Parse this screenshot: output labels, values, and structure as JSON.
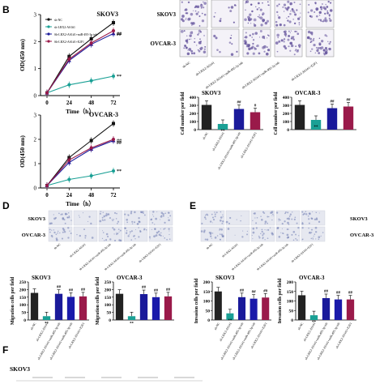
{
  "panels": {
    "B": "B",
    "D": "D",
    "E": "E",
    "F": "F"
  },
  "group_labels": [
    "sh-NC",
    "sh-LRX2-AS1#1",
    "sh-LRX2-AS1#1+miR-495-3p inh",
    "sh-LRX2-AS1#1+E2F1"
  ],
  "colony_row_labels": [
    "SKOV3",
    "OVCAR-3"
  ],
  "transwell_row_labels": [
    "SKOV3",
    "OVCAR-3"
  ],
  "f_row_label": "SKOV3",
  "colors": {
    "sh_NC": "#111111",
    "sh_AS1": "#1aa095",
    "miR_inh": "#1a1a9a",
    "E2F1": "#9a1a4a",
    "colony": "#6a5aa0",
    "transwell": "#b8c0d8"
  },
  "chart_data": [
    {
      "type": "line",
      "title": "SKOV3",
      "xlabel": "Time（h）",
      "ylabel": "OD(450 nm)",
      "x": [
        0,
        24,
        48,
        72
      ],
      "ylim": [
        0,
        3
      ],
      "yticks": [
        "0",
        "1",
        "2",
        "3"
      ],
      "xticks": [
        "0",
        "24",
        "48",
        "72"
      ],
      "legend": "top-left",
      "annotations": [
        "##",
        "##",
        "**"
      ],
      "series": [
        {
          "name": "sh-NC",
          "values": [
            0.1,
            1.45,
            2.1,
            2.7
          ]
        },
        {
          "name": "sh-LRX2-AS1#1",
          "values": [
            0.1,
            0.4,
            0.55,
            0.72
          ]
        },
        {
          "name": "Sh-LRX2-AS1#1+miR-495-3p inh",
          "values": [
            0.1,
            1.3,
            1.9,
            2.3
          ]
        },
        {
          "name": "Sh-LRX2-AS1#1+E2F1",
          "values": [
            0.1,
            1.35,
            1.95,
            2.4
          ]
        }
      ]
    },
    {
      "type": "line",
      "title": "OVCAR-3",
      "xlabel": "Time（h）",
      "ylabel": "OD(450 nm)",
      "x": [
        0,
        24,
        48,
        72
      ],
      "ylim": [
        0,
        3
      ],
      "yticks": [
        "0",
        "1",
        "2",
        "3"
      ],
      "xticks": [
        "0",
        "24",
        "48",
        "72"
      ],
      "annotations": [
        "##",
        "##",
        "**"
      ],
      "series": [
        {
          "name": "sh-NC",
          "values": [
            0.1,
            1.25,
            1.95,
            2.65
          ]
        },
        {
          "name": "sh-LRX2-AS1#1",
          "values": [
            0.1,
            0.35,
            0.5,
            0.7
          ]
        },
        {
          "name": "Sh-LRX2-AS1#1+miR-495-3p inh",
          "values": [
            0.1,
            1.05,
            1.6,
            1.95
          ]
        },
        {
          "name": "Sh-LRX2-AS1#1+E2F1",
          "values": [
            0.1,
            1.15,
            1.65,
            2.0
          ]
        }
      ]
    },
    {
      "type": "bar",
      "title": "SKOV3",
      "ylabel": "Cell number per field",
      "ylim": [
        0,
        400
      ],
      "yticks": [
        "0",
        "100",
        "200",
        "300",
        "400"
      ],
      "values": [
        305,
        70,
        255,
        215
      ],
      "annotations": [
        "",
        "**",
        "##",
        "#"
      ]
    },
    {
      "type": "bar",
      "title": "OVCAR-3",
      "ylabel": "Cell number per field",
      "ylim": [
        0,
        400
      ],
      "yticks": [
        "0",
        "100",
        "200",
        "300",
        "400"
      ],
      "values": [
        305,
        120,
        265,
        285
      ],
      "annotations": [
        "",
        "**",
        "##",
        "##"
      ]
    },
    {
      "type": "bar",
      "title": "SKOV3",
      "ylabel": "Migration cells per field",
      "ylim": [
        0,
        250
      ],
      "yticks": [
        "0",
        "50",
        "100",
        "150",
        "200",
        "250"
      ],
      "values": [
        178,
        25,
        172,
        152,
        155
      ],
      "annotations": [
        "",
        "**",
        "##",
        "##",
        "##"
      ]
    },
    {
      "type": "bar",
      "title": "OVCAR-3",
      "ylabel": "Migration cells per field",
      "ylim": [
        0,
        250
      ],
      "yticks": [
        "0",
        "50",
        "100",
        "150",
        "200",
        "250"
      ],
      "values": [
        172,
        25,
        170,
        150,
        155
      ],
      "annotations": [
        "",
        "**",
        "##",
        "##",
        "##"
      ]
    },
    {
      "type": "bar",
      "title": "SKOV3",
      "ylabel": "Invasion cells per field",
      "ylim": [
        0,
        200
      ],
      "yticks": [
        "0",
        "50",
        "100",
        "150",
        "200"
      ],
      "values": [
        150,
        35,
        120,
        112,
        118
      ],
      "annotations": [
        "",
        "**",
        "##",
        "##",
        "##"
      ]
    },
    {
      "type": "bar",
      "title": "OVCAR-3",
      "ylabel": "Invasion cells per field",
      "ylim": [
        0,
        200
      ],
      "yticks": [
        "0",
        "50",
        "100",
        "150",
        "200"
      ],
      "values": [
        130,
        25,
        115,
        108,
        108
      ],
      "annotations": [
        "",
        "**",
        "##",
        "##",
        "##"
      ]
    }
  ]
}
